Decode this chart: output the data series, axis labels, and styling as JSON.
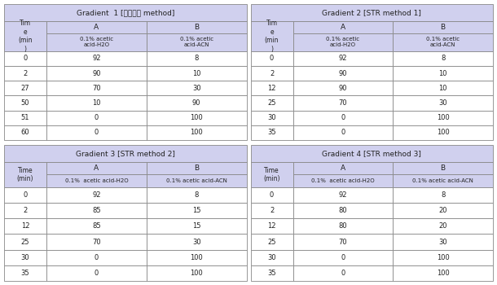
{
  "header_bg": "#d0d0ee",
  "border_color": "#888888",
  "text_color": "#222222",
  "fig_w": 6.1,
  "fig_h": 3.5,
  "dpi": 100,
  "gradients": [
    {
      "title": "Gradient  1 [참고논문 method]",
      "time_header": "Tim\ne\n(min\n)",
      "col_a_header": "A",
      "col_b_header": "B",
      "col_a_sub": "0.1% acetic\nacid-H2O",
      "col_b_sub": "0.1% acetic\nacid-ACN",
      "top_table": true,
      "rows": [
        [
          "0",
          "92",
          "8"
        ],
        [
          "2",
          "90",
          "10"
        ],
        [
          "27",
          "70",
          "30"
        ],
        [
          "50",
          "10",
          "90"
        ],
        [
          "51",
          "0",
          "100"
        ],
        [
          "60",
          "0",
          "100"
        ]
      ]
    },
    {
      "title": "Gradient 2 [STR method 1]",
      "time_header": "Tim\ne\n(min\n)",
      "col_a_header": "A",
      "col_b_header": "B",
      "col_a_sub": "0.1% acetic\nacid-H2O",
      "col_b_sub": "0.1% acetic\nacid-ACN",
      "top_table": true,
      "rows": [
        [
          "0",
          "92",
          "8"
        ],
        [
          "2",
          "90",
          "10"
        ],
        [
          "12",
          "90",
          "10"
        ],
        [
          "25",
          "70",
          "30"
        ],
        [
          "30",
          "0",
          "100"
        ],
        [
          "35",
          "0",
          "100"
        ]
      ]
    },
    {
      "title": "Gradient 3 [STR method 2]",
      "time_header": "Time\n(min)",
      "col_a_header": "A",
      "col_b_header": "B",
      "col_a_sub": "0.1%  acetic acid-H2O",
      "col_b_sub": "0.1% acetic acid-ACN",
      "top_table": false,
      "rows": [
        [
          "0",
          "92",
          "8"
        ],
        [
          "2",
          "85",
          "15"
        ],
        [
          "12",
          "85",
          "15"
        ],
        [
          "25",
          "70",
          "30"
        ],
        [
          "30",
          "0",
          "100"
        ],
        [
          "35",
          "0",
          "100"
        ]
      ]
    },
    {
      "title": "Gradient 4 [STR method 3]",
      "time_header": "Time\n(min)",
      "col_a_header": "A",
      "col_b_header": "B",
      "col_a_sub": "0.1%  acetic acid-H2O",
      "col_b_sub": "0.1% acetic acid-ACN",
      "top_table": false,
      "rows": [
        [
          "0",
          "92",
          "8"
        ],
        [
          "2",
          "80",
          "20"
        ],
        [
          "12",
          "80",
          "20"
        ],
        [
          "25",
          "70",
          "30"
        ],
        [
          "30",
          "0",
          "100"
        ],
        [
          "35",
          "0",
          "100"
        ]
      ]
    }
  ]
}
